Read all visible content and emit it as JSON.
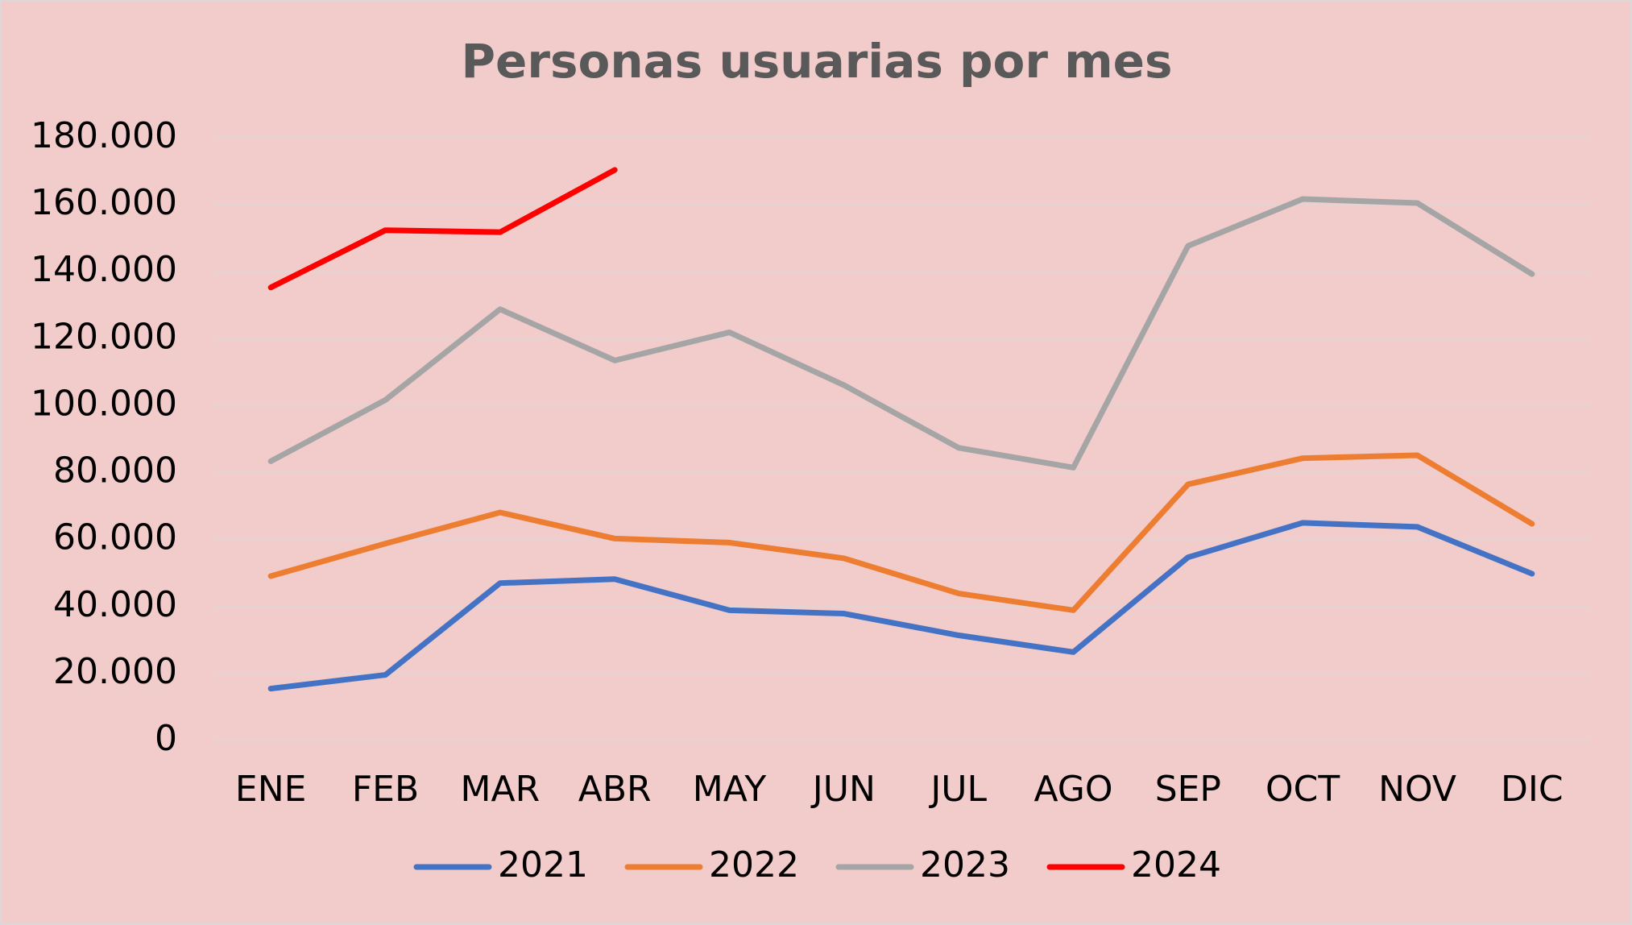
{
  "chart_data": {
    "type": "line",
    "title": "Personas usuarias por mes",
    "categories": [
      "ENE",
      "FEB",
      "MAR",
      "ABR",
      "MAY",
      "JUN",
      "JUL",
      "AGO",
      "SEP",
      "OCT",
      "NOV",
      "DIC"
    ],
    "series": [
      {
        "name": "2021",
        "color": "#4472c4",
        "values": [
          15500,
          19600,
          47000,
          48200,
          38900,
          37900,
          31400,
          26400,
          54700,
          65000,
          63800,
          49800
        ]
      },
      {
        "name": "2022",
        "color": "#ed7d31",
        "values": [
          49100,
          58800,
          68100,
          60300,
          59100,
          54400,
          43900,
          38900,
          76500,
          84300,
          85200,
          64700
        ]
      },
      {
        "name": "2023",
        "color": "#a5a5a5",
        "values": [
          83400,
          101700,
          128800,
          113500,
          121900,
          106100,
          87400,
          81500,
          147700,
          161700,
          160500,
          139300
        ]
      },
      {
        "name": "2024",
        "color": "#ff0000",
        "values": [
          135300,
          152400,
          151800,
          170400,
          null,
          null,
          null,
          null,
          null,
          null,
          null,
          null
        ]
      }
    ],
    "ylim": [
      0,
      180000
    ],
    "yticks": [
      0,
      {
        "value": 20000,
        "label": "20.000"
      },
      {
        "value": 40000,
        "label": "40.000"
      },
      {
        "value": 60000,
        "label": "60.000"
      },
      {
        "value": 80000,
        "label": "80.000"
      },
      {
        "value": 100000,
        "label": "100.000"
      },
      {
        "value": 120000,
        "label": "120.000"
      },
      {
        "value": 140000,
        "label": "140.000"
      },
      {
        "value": 160000,
        "label": "160.000"
      },
      {
        "value": 180000,
        "label": "180.000"
      }
    ],
    "grid": true,
    "legend": "bottom"
  }
}
